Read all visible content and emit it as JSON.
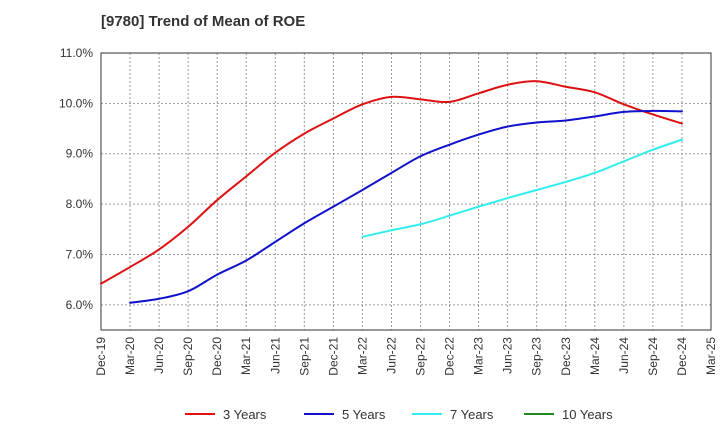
{
  "chart_data": {
    "type": "line",
    "title": "[9780]  Trend of Mean of ROE",
    "xlabel": "",
    "ylabel": "",
    "x_tick_labels": [
      "Dec-19",
      "Mar-20",
      "Jun-20",
      "Sep-20",
      "Dec-20",
      "Mar-21",
      "Jun-21",
      "Sep-21",
      "Dec-21",
      "Mar-22",
      "Jun-22",
      "Sep-22",
      "Dec-22",
      "Mar-23",
      "Jun-23",
      "Sep-23",
      "Dec-23",
      "Mar-24",
      "Jun-24",
      "Sep-24",
      "Dec-24",
      "Mar-25"
    ],
    "y_tick_labels": [
      "6.0%",
      "7.0%",
      "8.0%",
      "9.0%",
      "10.0%",
      "11.0%"
    ],
    "ylim": [
      5.5,
      11.0
    ],
    "y_ticks": [
      6.0,
      7.0,
      8.0,
      9.0,
      10.0,
      11.0
    ],
    "grid": true,
    "legend_position": "bottom",
    "series": [
      {
        "name": "3 Years",
        "color": "#dd1111",
        "start_index": 0,
        "values": [
          6.42,
          6.75,
          7.1,
          7.55,
          8.08,
          8.55,
          9.02,
          9.4,
          9.7,
          9.98,
          10.13,
          10.08,
          10.03,
          10.2,
          10.37,
          10.44,
          10.33,
          10.22,
          9.98,
          9.78,
          9.6
        ]
      },
      {
        "name": "5 Years",
        "color": "#1111cc",
        "start_index": 1,
        "values": [
          6.04,
          6.12,
          6.27,
          6.6,
          6.88,
          7.25,
          7.62,
          7.95,
          8.28,
          8.62,
          8.95,
          9.18,
          9.38,
          9.54,
          9.62,
          9.66,
          9.74,
          9.83,
          9.85,
          9.84
        ]
      },
      {
        "name": "7 Years",
        "color": "#33eeee",
        "start_index": 9,
        "values": [
          7.35,
          7.48,
          7.6,
          7.77,
          7.95,
          8.12,
          8.28,
          8.44,
          8.62,
          8.85,
          9.08,
          9.28
        ]
      },
      {
        "name": "10 Years",
        "color": "#228822",
        "start_index": 0,
        "values": []
      }
    ]
  }
}
